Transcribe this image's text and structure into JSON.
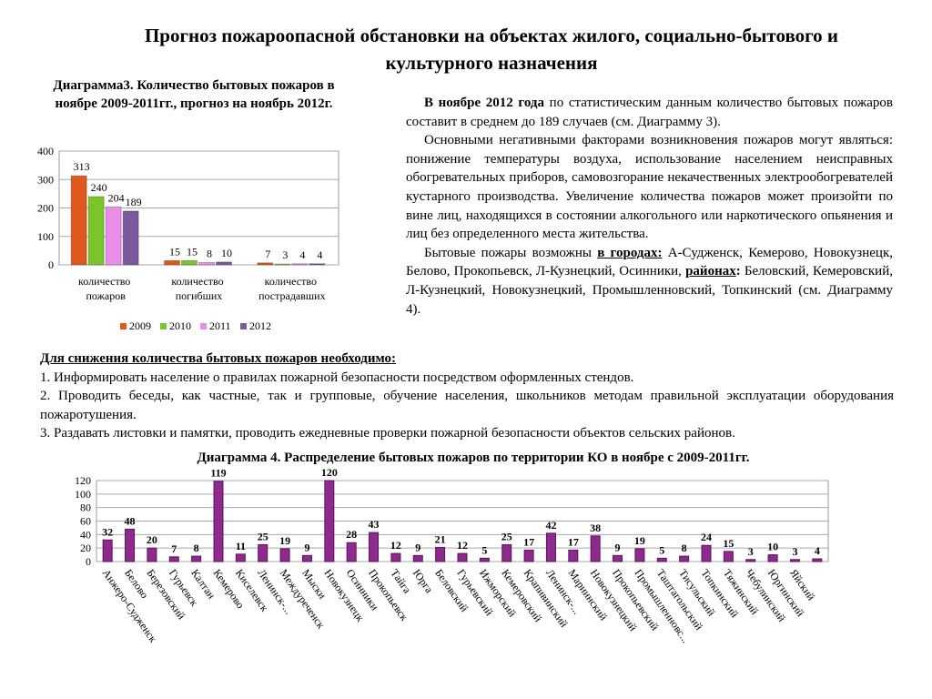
{
  "title": "Прогноз пожароопасной обстановки на объектах жилого, социально-бытового и культурного назначения",
  "right_text": {
    "p1": {
      "bold": "В ноябре 2012 года",
      "text": " по статистическим данным количество бытовых пожаров составит в среднем до 189 случаев (см. Диаграмму 3)."
    },
    "p2": "Основными негативными факторами возникновения пожаров могут являться: понижение температуры воздуха, использование населением неисправных обогревательных приборов, самовозгорание некачественных электрообогревателей кустарного производства. Увеличение количества пожаров может произойти по вине лиц, находящихся в состоянии алкогольного или наркотического опьянения и лиц без определенного места жительства.",
    "p3": {
      "start": "Бытовые пожары возможны ",
      "cities_label": "в городах:",
      "cities": " А-Судженск, Кемерово, Новокузнецк, Белово, Прокопьевск, Л-Кузнецкий, Осинники, ",
      "districts_label": "районах",
      "colon": ":",
      "districts": " Беловский, Кемеровский, Л-Кузнецкий, Новокузнецкий, Промышленновский, Топкинский (см. Диаграмму 4)."
    }
  },
  "measures": {
    "heading": "Для снижения количества бытовых пожаров необходимо:",
    "items": [
      "1. Информировать население о правилах пожарной безопасности посредством оформленных стендов.",
      "2. Проводить беседы, как частные, так и групповые, обучение населения, школьников методам правильной эксплуатации оборудования пожаротушения.",
      "3. Раздавать листовки и памятки,  проводить  ежедневные проверки пожарной безопасности объектов сельских районов."
    ]
  },
  "chart_data": [
    {
      "type": "bar",
      "title": "Диаграмма3. Количество бытовых пожаров в ноябре 2009-2011гг., прогноз  на ноябрь 2012г.",
      "categories": [
        "количество пожаров",
        "количество погибших",
        "количество пострадавших"
      ],
      "series": [
        {
          "name": "2009",
          "color": "#e0581c",
          "values": [
            313,
            15,
            7
          ]
        },
        {
          "name": "2010",
          "color": "#7cc42c",
          "values": [
            240,
            15,
            3
          ]
        },
        {
          "name": "2011",
          "color": "#e88ee8",
          "values": [
            204,
            8,
            4
          ]
        },
        {
          "name": "2012",
          "color": "#7a5a9c",
          "values": [
            189,
            10,
            4
          ]
        }
      ],
      "ylim": [
        0,
        400
      ],
      "yticks": [
        0,
        100,
        200,
        300,
        400
      ],
      "grid": true,
      "legend": "bottom"
    },
    {
      "type": "bar",
      "title": "Диаграмма 4. Распределение бытовых пожаров по территории КО в ноябре с 2009-2011гг.",
      "categories": [
        "Анжеро-Судженск",
        "Белово",
        "Березовский",
        "Гурьевск",
        "Калтан",
        "Кемерово",
        "Киселевск",
        "Ленинск-...",
        "Междуреченск",
        "Мыски",
        "Новокузнецк",
        "Осинники",
        "Прокопьевск",
        "Тайга",
        "Юрга",
        "Беловский",
        "Гурьевский",
        "Ижморский",
        "Кемеровский",
        "Крапивинский",
        "Ленинск-...",
        "Мариинский",
        "Новокузнецкий",
        "Прокопьевский",
        "Промышленновс...",
        "Таштагольский",
        "Тисульский",
        "Топкинский",
        "Тяжинский",
        "Чебулинский",
        "Юргинский",
        "Яйский",
        null
      ],
      "values": [
        32,
        48,
        20,
        7,
        8,
        119,
        11,
        25,
        19,
        9,
        120,
        28,
        43,
        12,
        9,
        21,
        12,
        5,
        25,
        17,
        42,
        17,
        38,
        9,
        19,
        5,
        8,
        24,
        15,
        3,
        10,
        3,
        4
      ],
      "color": "#8e2a8e",
      "ylim": [
        0,
        120
      ],
      "yticks": [
        0,
        20,
        40,
        60,
        80,
        100,
        120
      ],
      "grid": true
    }
  ]
}
